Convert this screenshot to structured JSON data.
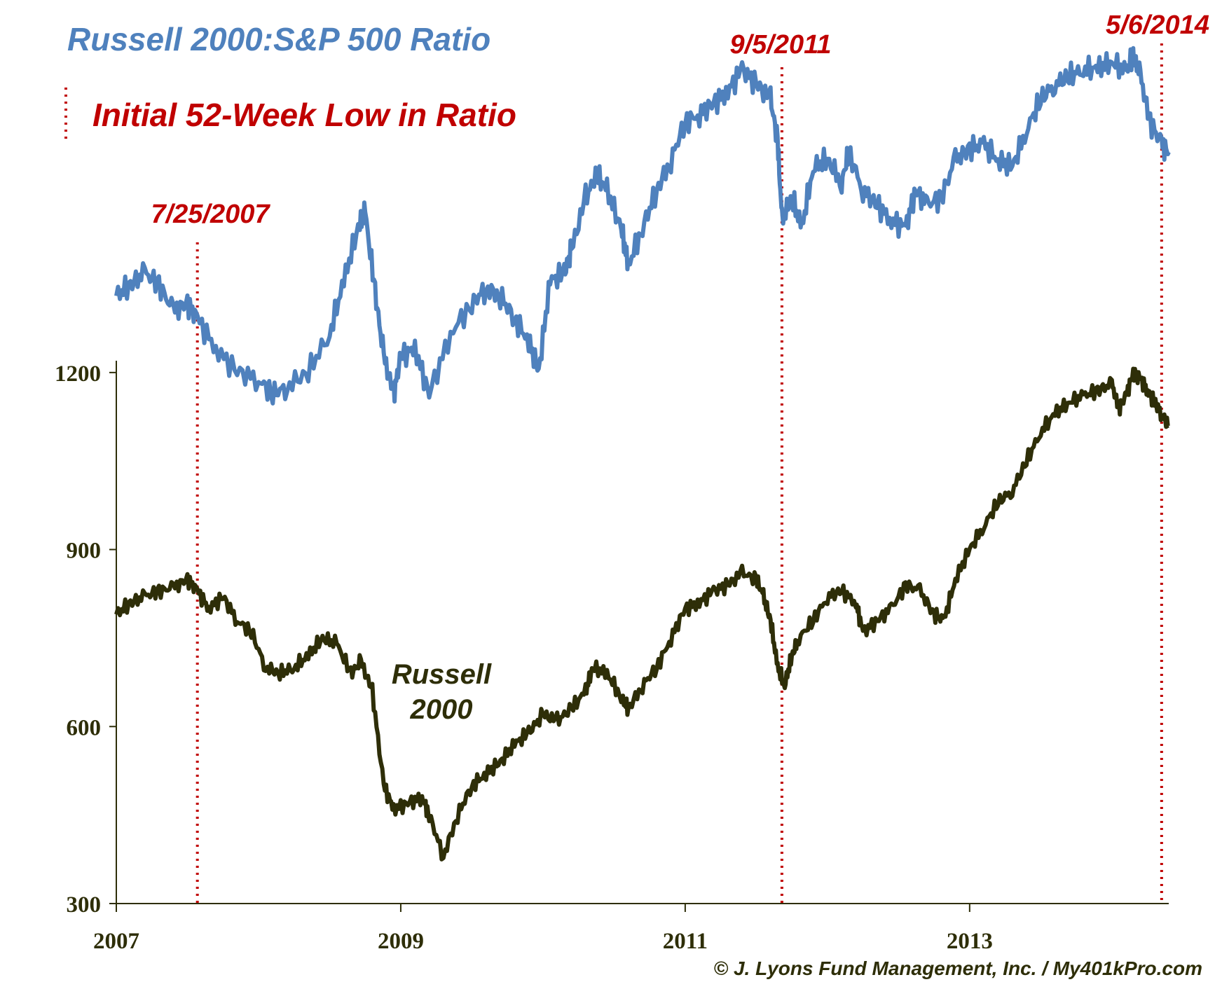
{
  "chart_data": {
    "type": "line",
    "title": "Russell 2000:S&P 500 Ratio",
    "legend": {
      "marker": "dotted-red-line",
      "label": "Initial 52-Week Low in Ratio",
      "placement": "top-left"
    },
    "x_ticks": [
      "2007",
      "2009",
      "2011",
      "2013"
    ],
    "x_tick_values": [
      2007,
      2009,
      2011,
      2013
    ],
    "xlim": [
      2007,
      2014.4
    ],
    "y_ticks": [
      "300",
      "600",
      "900",
      "1200"
    ],
    "y_tick_values": [
      300,
      600,
      900,
      1200
    ],
    "ylim": [
      300,
      1220
    ],
    "series": [
      {
        "name": "Russell 2000:S&P 500 Ratio",
        "axis": "relative (unlabeled, upper band)",
        "color": "#4F81BD",
        "x": [
          2007.0,
          2007.1,
          2007.2,
          2007.3,
          2007.4,
          2007.5,
          2007.57,
          2007.7,
          2007.85,
          2008.0,
          2008.1,
          2008.2,
          2008.35,
          2008.5,
          2008.6,
          2008.7,
          2008.75,
          2008.82,
          2008.88,
          2008.95,
          2009.0,
          2009.1,
          2009.2,
          2009.35,
          2009.5,
          2009.6,
          2009.7,
          2009.8,
          2009.9,
          2009.97,
          2010.05,
          2010.15,
          2010.2,
          2010.3,
          2010.38,
          2010.45,
          2010.55,
          2010.6,
          2010.7,
          2010.8,
          2010.9,
          2011.0,
          2011.1,
          2011.2,
          2011.3,
          2011.4,
          2011.5,
          2011.6,
          2011.65,
          2011.68,
          2011.75,
          2011.82,
          2011.9,
          2012.0,
          2012.1,
          2012.15,
          2012.25,
          2012.35,
          2012.45,
          2012.55,
          2012.62,
          2012.7,
          2012.8,
          2012.9,
          2013.0,
          2013.1,
          2013.2,
          2013.3,
          2013.4,
          2013.5,
          2013.6,
          2013.7,
          2013.8,
          2013.9,
          2014.0,
          2014.1,
          2014.15,
          2014.2,
          2014.27,
          2014.35,
          2014.4
        ],
        "y": [
          0.44,
          0.47,
          0.5,
          0.47,
          0.4,
          0.42,
          0.38,
          0.3,
          0.24,
          0.22,
          0.18,
          0.2,
          0.24,
          0.34,
          0.48,
          0.62,
          0.66,
          0.45,
          0.28,
          0.18,
          0.28,
          0.3,
          0.18,
          0.34,
          0.42,
          0.46,
          0.44,
          0.38,
          0.32,
          0.24,
          0.48,
          0.5,
          0.56,
          0.7,
          0.76,
          0.72,
          0.62,
          0.52,
          0.62,
          0.72,
          0.8,
          0.9,
          0.92,
          0.95,
          0.98,
          1.04,
          1.0,
          0.96,
          0.85,
          0.64,
          0.7,
          0.62,
          0.78,
          0.8,
          0.74,
          0.82,
          0.72,
          0.68,
          0.64,
          0.62,
          0.72,
          0.68,
          0.7,
          0.8,
          0.83,
          0.84,
          0.8,
          0.78,
          0.88,
          0.96,
          1.0,
          1.02,
          1.04,
          1.04,
          1.06,
          1.03,
          1.08,
          1.02,
          0.9,
          0.84,
          0.82
        ]
      },
      {
        "name": "Russell 2000",
        "axis": "left",
        "color": "#2E2E08",
        "label": [
          "Russell",
          "2000"
        ],
        "x": [
          2007.0,
          2007.1,
          2007.2,
          2007.3,
          2007.4,
          2007.5,
          2007.57,
          2007.65,
          2007.75,
          2007.85,
          2007.95,
          2008.05,
          2008.15,
          2008.25,
          2008.35,
          2008.45,
          2008.55,
          2008.65,
          2008.72,
          2008.8,
          2008.88,
          2008.95,
          2009.05,
          2009.15,
          2009.2,
          2009.3,
          2009.4,
          2009.5,
          2009.6,
          2009.7,
          2009.8,
          2009.9,
          2010.0,
          2010.1,
          2010.2,
          2010.3,
          2010.35,
          2010.45,
          2010.55,
          2010.6,
          2010.7,
          2010.8,
          2010.9,
          2011.0,
          2011.1,
          2011.2,
          2011.3,
          2011.4,
          2011.5,
          2011.55,
          2011.6,
          2011.65,
          2011.7,
          2011.75,
          2011.8,
          2011.9,
          2012.0,
          2012.1,
          2012.2,
          2012.25,
          2012.35,
          2012.45,
          2012.55,
          2012.65,
          2012.75,
          2012.82,
          2012.9,
          2013.0,
          2013.1,
          2013.2,
          2013.3,
          2013.4,
          2013.5,
          2013.6,
          2013.7,
          2013.8,
          2013.9,
          2014.0,
          2014.05,
          2014.1,
          2014.15,
          2014.2,
          2014.25,
          2014.3,
          2014.35,
          2014.4
        ],
        "y": [
          790,
          810,
          820,
          830,
          835,
          850,
          830,
          800,
          820,
          780,
          760,
          700,
          690,
          700,
          720,
          750,
          740,
          690,
          710,
          660,
          500,
          460,
          470,
          480,
          450,
          380,
          450,
          500,
          520,
          540,
          570,
          590,
          620,
          610,
          630,
          660,
          700,
          690,
          650,
          630,
          670,
          700,
          750,
          800,
          810,
          830,
          840,
          860,
          850,
          820,
          780,
          700,
          670,
          720,
          750,
          780,
          820,
          830,
          810,
          760,
          780,
          800,
          840,
          830,
          790,
          780,
          850,
          900,
          940,
          980,
          1000,
          1050,
          1100,
          1130,
          1150,
          1160,
          1170,
          1180,
          1140,
          1160,
          1200,
          1190,
          1170,
          1150,
          1130,
          1110
        ]
      }
    ],
    "annotations": [
      {
        "date": "7/25/2007",
        "x": 2007.57
      },
      {
        "date": "9/5/2011",
        "x": 2011.68
      },
      {
        "date": "5/6/2014",
        "x": 2014.35
      }
    ],
    "annotation_color": "#C00000",
    "russell_color": "#2E2E08",
    "ratio_color": "#4F81BD",
    "copyright": "© J. Lyons Fund Management, Inc. / My401kPro.com"
  }
}
